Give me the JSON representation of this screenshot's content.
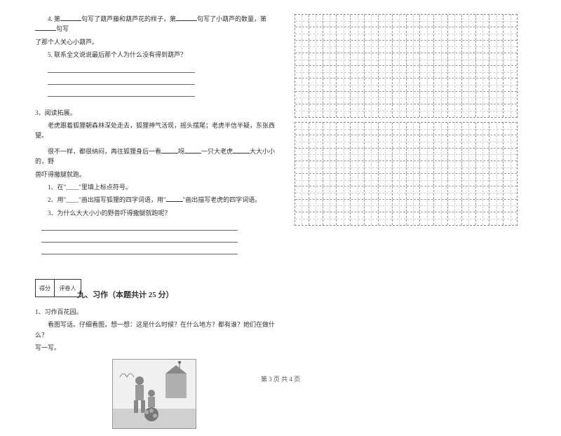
{
  "left": {
    "q4_prefix": "4. 第",
    "q4_mid1": "句写了葫芦藤和葫芦花的样子，第",
    "q4_mid2": "句写了小葫芦的数量，第",
    "q4_end": "句写",
    "q4_line2": "了那个人关心小葫芦。",
    "q5": "5. 联系全文说说最后那个人为什么没有得到葫芦？",
    "reading_title": "3、阅读拓展。",
    "reading_p1a": "老虎跟着狐狸朝森林深处走去，狐狸神气活现，摇头摆尾；老虎半信半疑，东张西望。",
    "reading_p2a": "很不一样，都很纳闷，再往狐狸身后一看",
    "reading_p2b": "呀",
    "reading_p2c": "一只大老虎",
    "reading_p2d": "大大小小的，野",
    "reading_p3": "兽吓得撒腿就跑。",
    "sub1": "1、在\"____\"里填上标点符号。",
    "sub2a": "2、用\"____\"画出描写狐狸的四字词语，用\"",
    "sub2b": "\"画出描写老虎的四字词语。",
    "sub3": "3、为什么大大小小的野兽吓得撒腿就跑呢？",
    "score_label1": "得分",
    "score_label2": "评卷人",
    "section9": "九、习作（本题共计 25 分）",
    "writing_title": "1、习作百花园。",
    "writing_body1": "看图写话。仔细看图，想一想：这是什么时候？在什么地方？都有谁？她们在做什么？",
    "writing_body2": "写一写。"
  },
  "footer": "第 3 页 共 4 页",
  "grid": {
    "rows": 8,
    "cols": 16
  },
  "colors": {
    "text": "#333333",
    "bg": "#ffffff",
    "line": "#666666",
    "dash": "#999999"
  }
}
